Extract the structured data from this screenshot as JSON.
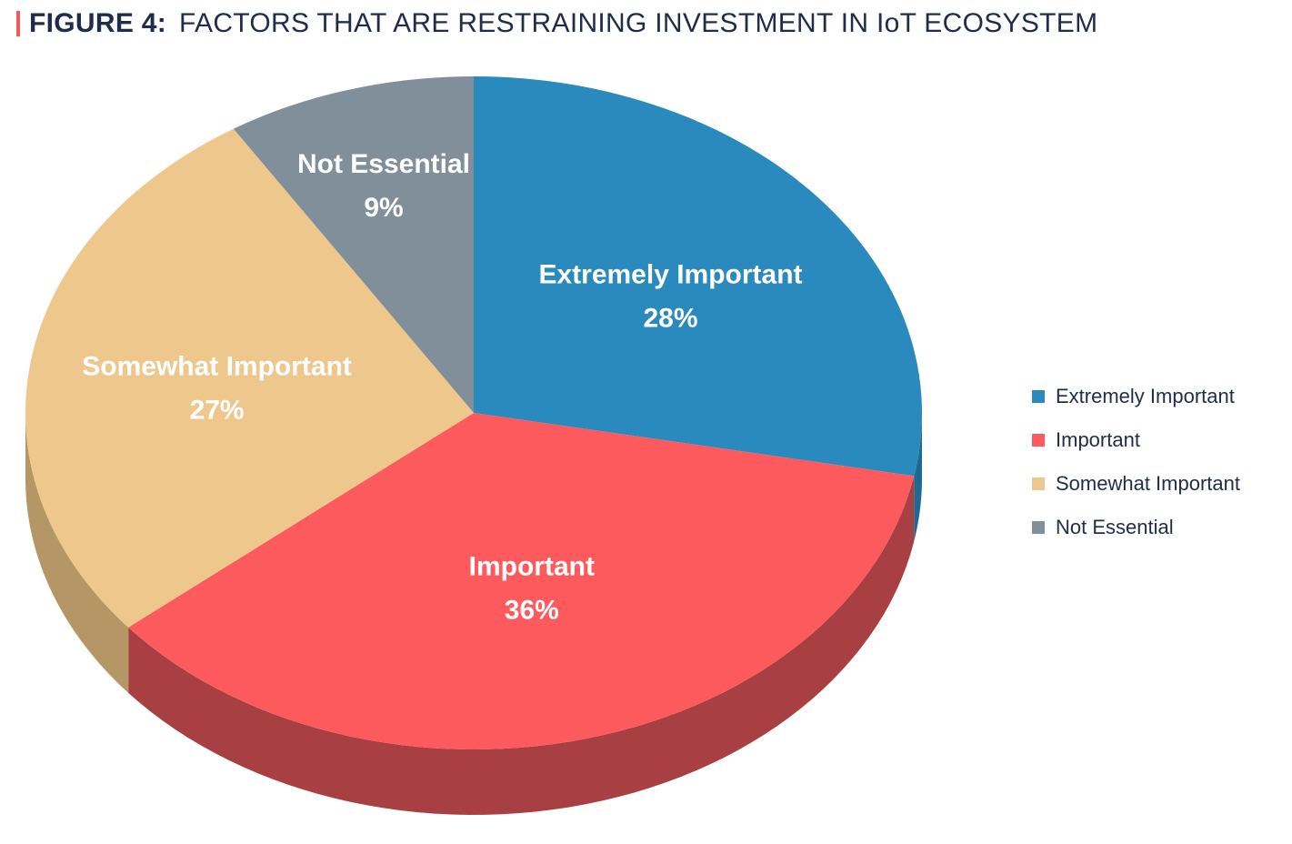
{
  "header": {
    "figure_label": "FIGURE 4:",
    "title": "FACTORS THAT ARE RESTRAINING INVESTMENT IN IoT ECOSYSTEM",
    "accent_color": "#f25a5c"
  },
  "chart_data": {
    "type": "pie",
    "title": "FACTORS THAT ARE RESTRAINING INVESTMENT IN IoT ECOSYSTEM",
    "style": "3d",
    "legend_position": "right",
    "slices": [
      {
        "label": "Extremely Important",
        "value": 28,
        "value_label": "28%",
        "color": "#2a89bd",
        "side_color": "#1f6a94"
      },
      {
        "label": "Important",
        "value": 36,
        "value_label": "36%",
        "color": "#fd5a5d",
        "side_color": "#a83f42"
      },
      {
        "label": "Somewhat Important",
        "value": 27,
        "value_label": "27%",
        "color": "#eec78c",
        "side_color": "#b59765"
      },
      {
        "label": "Not Essential",
        "value": 9,
        "value_label": "9%",
        "color": "#808f99",
        "side_color": "#5f6b73"
      }
    ]
  },
  "legend": {
    "items": [
      {
        "label": "Extremely Important",
        "color": "#2a89bd"
      },
      {
        "label": "Important",
        "color": "#fd5a5d"
      },
      {
        "label": "Somewhat Important",
        "color": "#eec78c"
      },
      {
        "label": "Not Essential",
        "color": "#808f99"
      }
    ]
  }
}
